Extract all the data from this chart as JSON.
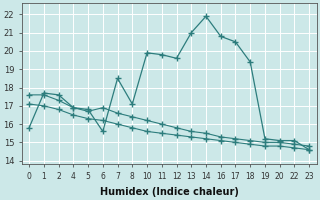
{
  "xlabel": "Humidex (Indice chaleur)",
  "bg_color": "#cce8e8",
  "grid_color": "#ffffff",
  "line_color": "#2d7d7d",
  "xtick_labels": [
    "0",
    "1",
    "2",
    "4",
    "5",
    "6",
    "7",
    "8",
    "10",
    "11",
    "12",
    "13",
    "14",
    "16",
    "17",
    "18",
    "19",
    "20",
    "22",
    "23"
  ],
  "yticks": [
    14,
    15,
    16,
    17,
    18,
    19,
    20,
    21,
    22
  ],
  "ylim": [
    13.8,
    22.6
  ],
  "series1_y": [
    15.8,
    17.7,
    17.6,
    16.9,
    16.8,
    15.6,
    18.5,
    17.1,
    19.9,
    19.8,
    19.6,
    21.0,
    21.9,
    20.8,
    20.5,
    19.4,
    15.2,
    15.1,
    15.1,
    14.6
  ],
  "series2_y": [
    17.6,
    17.6,
    17.3,
    16.9,
    16.7,
    16.9,
    16.6,
    16.4,
    16.2,
    16.0,
    15.8,
    15.6,
    15.5,
    15.3,
    15.2,
    15.1,
    15.0,
    15.0,
    14.9,
    14.8
  ],
  "series3_y": [
    17.1,
    17.0,
    16.8,
    16.5,
    16.3,
    16.2,
    16.0,
    15.8,
    15.6,
    15.5,
    15.4,
    15.3,
    15.2,
    15.1,
    15.0,
    14.9,
    14.8,
    14.8,
    14.7,
    14.6
  ]
}
